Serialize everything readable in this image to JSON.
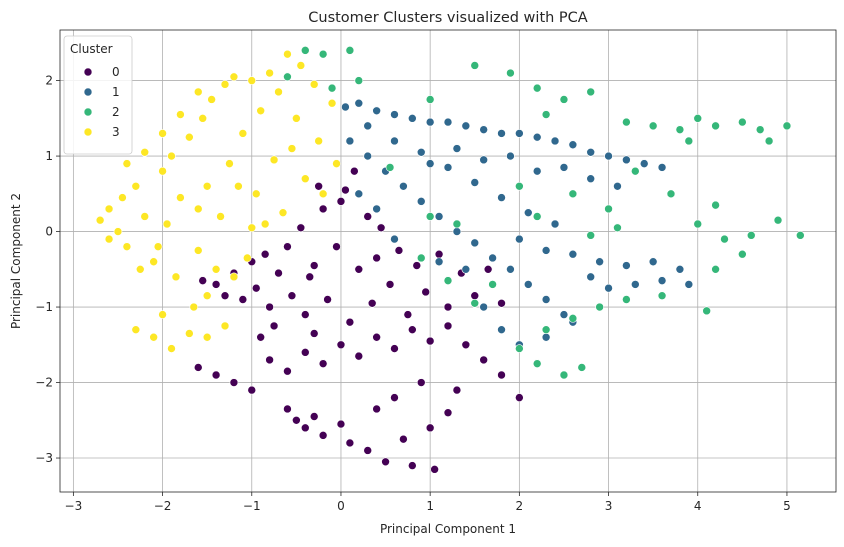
{
  "chart_data": {
    "type": "scatter",
    "title": "Customer Clusters visualized with PCA",
    "xlabel": "Principal Component 1",
    "ylabel": "Principal Component 2",
    "xlim": [
      -3.15,
      5.55
    ],
    "ylim": [
      -3.45,
      2.67
    ],
    "xticks": [
      -3,
      -2,
      -1,
      0,
      1,
      2,
      3,
      4,
      5
    ],
    "yticks": [
      -3,
      -2,
      -1,
      0,
      1,
      2
    ],
    "grid": true,
    "legend": {
      "title": "Cluster",
      "placement": "top-left"
    },
    "series": [
      {
        "name": "0",
        "color": "#440154",
        "points": [
          [
            -1.55,
            -0.65
          ],
          [
            -1.4,
            -0.7
          ],
          [
            -1.3,
            -0.85
          ],
          [
            -1.2,
            -0.55
          ],
          [
            -1.1,
            -0.9
          ],
          [
            -1.0,
            -0.4
          ],
          [
            -0.95,
            -0.75
          ],
          [
            -0.85,
            -0.3
          ],
          [
            -0.8,
            -1.0
          ],
          [
            -0.7,
            -0.55
          ],
          [
            -0.6,
            -0.2
          ],
          [
            -0.55,
            -0.85
          ],
          [
            -0.45,
            0.05
          ],
          [
            -0.4,
            -1.1
          ],
          [
            -0.3,
            -0.45
          ],
          [
            -0.2,
            0.3
          ],
          [
            -0.15,
            -0.9
          ],
          [
            -0.05,
            -0.2
          ],
          [
            0.05,
            0.55
          ],
          [
            0.1,
            -1.2
          ],
          [
            0.2,
            -0.5
          ],
          [
            0.3,
            0.2
          ],
          [
            0.35,
            -0.95
          ],
          [
            0.45,
            0.05
          ],
          [
            0.55,
            -0.7
          ],
          [
            0.65,
            -0.25
          ],
          [
            0.75,
            -1.1
          ],
          [
            0.85,
            -0.45
          ],
          [
            0.95,
            -0.8
          ],
          [
            1.1,
            -0.3
          ],
          [
            1.2,
            -1.0
          ],
          [
            1.35,
            -0.55
          ],
          [
            1.5,
            -0.85
          ],
          [
            1.65,
            -0.5
          ],
          [
            1.8,
            -0.95
          ],
          [
            0.0,
            0.4
          ],
          [
            -0.25,
            0.6
          ],
          [
            0.15,
            0.8
          ],
          [
            -0.35,
            -0.6
          ],
          [
            0.4,
            -0.35
          ],
          [
            -1.6,
            -1.8
          ],
          [
            -1.4,
            -1.9
          ],
          [
            -1.2,
            -2.0
          ],
          [
            -1.0,
            -2.1
          ],
          [
            -0.8,
            -1.7
          ],
          [
            -0.6,
            -1.85
          ],
          [
            -0.4,
            -1.6
          ],
          [
            -0.2,
            -1.75
          ],
          [
            0.0,
            -1.5
          ],
          [
            0.2,
            -1.65
          ],
          [
            0.4,
            -1.4
          ],
          [
            0.6,
            -1.55
          ],
          [
            0.8,
            -1.3
          ],
          [
            1.0,
            -1.45
          ],
          [
            1.2,
            -1.25
          ],
          [
            1.4,
            -1.5
          ],
          [
            1.6,
            -1.7
          ],
          [
            1.8,
            -1.9
          ],
          [
            2.0,
            -2.2
          ],
          [
            -0.6,
            -2.35
          ],
          [
            -0.5,
            -2.5
          ],
          [
            -0.4,
            -2.6
          ],
          [
            -0.3,
            -2.45
          ],
          [
            -0.2,
            -2.7
          ],
          [
            0.0,
            -2.55
          ],
          [
            0.1,
            -2.8
          ],
          [
            0.3,
            -2.9
          ],
          [
            0.5,
            -3.05
          ],
          [
            0.7,
            -2.75
          ],
          [
            0.8,
            -3.1
          ],
          [
            1.0,
            -2.6
          ],
          [
            1.05,
            -3.15
          ],
          [
            1.2,
            -2.4
          ],
          [
            0.4,
            -2.35
          ],
          [
            0.6,
            -2.2
          ],
          [
            -0.9,
            -1.4
          ],
          [
            -0.75,
            -1.25
          ],
          [
            -0.3,
            -1.35
          ],
          [
            0.9,
            -2.0
          ],
          [
            1.3,
            -2.1
          ]
        ]
      },
      {
        "name": "1",
        "color": "#30688e",
        "points": [
          [
            0.05,
            1.65
          ],
          [
            0.2,
            1.7
          ],
          [
            0.4,
            1.6
          ],
          [
            0.6,
            1.55
          ],
          [
            0.8,
            1.5
          ],
          [
            1.0,
            1.45
          ],
          [
            1.2,
            1.45
          ],
          [
            1.4,
            1.4
          ],
          [
            1.6,
            1.35
          ],
          [
            1.8,
            1.3
          ],
          [
            2.0,
            1.3
          ],
          [
            2.2,
            1.25
          ],
          [
            2.4,
            1.2
          ],
          [
            2.6,
            1.15
          ],
          [
            2.8,
            1.05
          ],
          [
            3.0,
            1.0
          ],
          [
            3.2,
            0.95
          ],
          [
            3.4,
            0.9
          ],
          [
            3.6,
            0.85
          ],
          [
            0.1,
            1.2
          ],
          [
            0.3,
            1.0
          ],
          [
            0.5,
            0.8
          ],
          [
            0.7,
            0.6
          ],
          [
            0.9,
            0.4
          ],
          [
            1.1,
            0.2
          ],
          [
            1.3,
            0.0
          ],
          [
            1.5,
            -0.15
          ],
          [
            1.7,
            -0.35
          ],
          [
            1.9,
            -0.5
          ],
          [
            2.1,
            -0.7
          ],
          [
            2.3,
            -0.9
          ],
          [
            2.5,
            -1.1
          ],
          [
            0.3,
            1.4
          ],
          [
            0.6,
            1.2
          ],
          [
            0.9,
            1.05
          ],
          [
            1.2,
            0.85
          ],
          [
            1.5,
            0.65
          ],
          [
            1.8,
            0.45
          ],
          [
            2.1,
            0.25
          ],
          [
            2.4,
            0.1
          ],
          [
            1.0,
            0.9
          ],
          [
            1.3,
            1.1
          ],
          [
            1.6,
            0.95
          ],
          [
            1.9,
            1.0
          ],
          [
            2.2,
            0.8
          ],
          [
            2.5,
            0.85
          ],
          [
            2.8,
            0.7
          ],
          [
            3.1,
            0.6
          ],
          [
            2.0,
            -0.1
          ],
          [
            2.3,
            -0.25
          ],
          [
            2.6,
            -0.3
          ],
          [
            2.9,
            -0.4
          ],
          [
            3.2,
            -0.45
          ],
          [
            3.5,
            -0.4
          ],
          [
            3.8,
            -0.5
          ],
          [
            3.9,
            -0.7
          ],
          [
            2.8,
            -0.6
          ],
          [
            3.0,
            -0.75
          ],
          [
            3.3,
            -0.7
          ],
          [
            3.6,
            -0.65
          ],
          [
            1.4,
            -0.5
          ],
          [
            1.6,
            -1.0
          ],
          [
            1.8,
            -1.3
          ],
          [
            2.0,
            -1.5
          ],
          [
            2.3,
            -1.4
          ],
          [
            2.6,
            -1.2
          ],
          [
            0.4,
            0.3
          ],
          [
            0.2,
            0.5
          ],
          [
            0.6,
            -0.1
          ],
          [
            1.1,
            -0.4
          ]
        ]
      },
      {
        "name": "2",
        "color": "#35b779",
        "points": [
          [
            -0.4,
            2.4
          ],
          [
            -0.2,
            2.35
          ],
          [
            0.1,
            2.4
          ],
          [
            -0.6,
            2.05
          ],
          [
            0.2,
            2.0
          ],
          [
            -0.1,
            1.9
          ],
          [
            1.0,
            1.75
          ],
          [
            1.5,
            2.2
          ],
          [
            1.9,
            2.1
          ],
          [
            2.2,
            1.9
          ],
          [
            2.5,
            1.75
          ],
          [
            2.8,
            1.85
          ],
          [
            2.3,
            1.55
          ],
          [
            3.2,
            1.45
          ],
          [
            3.5,
            1.4
          ],
          [
            3.8,
            1.35
          ],
          [
            4.0,
            1.5
          ],
          [
            4.2,
            1.4
          ],
          [
            4.5,
            1.45
          ],
          [
            4.7,
            1.35
          ],
          [
            5.0,
            1.4
          ],
          [
            4.8,
            1.2
          ],
          [
            3.9,
            1.2
          ],
          [
            3.3,
            0.8
          ],
          [
            3.7,
            0.5
          ],
          [
            3.0,
            0.3
          ],
          [
            2.6,
            0.5
          ],
          [
            2.2,
            0.2
          ],
          [
            2.8,
            -0.05
          ],
          [
            3.1,
            0.05
          ],
          [
            4.2,
            0.35
          ],
          [
            4.0,
            0.1
          ],
          [
            4.3,
            -0.1
          ],
          [
            4.6,
            -0.05
          ],
          [
            4.9,
            0.15
          ],
          [
            5.15,
            -0.05
          ],
          [
            4.5,
            -0.3
          ],
          [
            4.2,
            -0.5
          ],
          [
            4.1,
            -1.05
          ],
          [
            3.6,
            -0.85
          ],
          [
            3.2,
            -0.9
          ],
          [
            2.9,
            -1.0
          ],
          [
            2.6,
            -1.15
          ],
          [
            2.3,
            -1.3
          ],
          [
            2.0,
            -1.55
          ],
          [
            2.2,
            -1.75
          ],
          [
            2.5,
            -1.9
          ],
          [
            2.7,
            -1.8
          ],
          [
            1.5,
            -0.95
          ],
          [
            1.7,
            -0.7
          ],
          [
            1.3,
            0.1
          ],
          [
            1.0,
            0.2
          ],
          [
            0.9,
            -0.35
          ],
          [
            1.2,
            -0.65
          ],
          [
            0.55,
            0.85
          ],
          [
            2.0,
            0.6
          ]
        ]
      },
      {
        "name": "3",
        "color": "#fde725",
        "points": [
          [
            -2.7,
            0.15
          ],
          [
            -2.6,
            0.3
          ],
          [
            -2.5,
            0.0
          ],
          [
            -2.45,
            0.45
          ],
          [
            -2.4,
            -0.2
          ],
          [
            -2.3,
            0.6
          ],
          [
            -2.2,
            0.2
          ],
          [
            -2.1,
            -0.4
          ],
          [
            -2.0,
            0.8
          ],
          [
            -1.95,
            0.1
          ],
          [
            -1.9,
            1.0
          ],
          [
            -1.85,
            -0.6
          ],
          [
            -1.8,
            0.45
          ],
          [
            -1.7,
            1.25
          ],
          [
            -1.6,
            -0.25
          ],
          [
            -1.55,
            1.5
          ],
          [
            -1.5,
            0.6
          ],
          [
            -1.45,
            1.75
          ],
          [
            -1.4,
            -0.5
          ],
          [
            -1.35,
            0.2
          ],
          [
            -1.3,
            1.95
          ],
          [
            -1.25,
            0.9
          ],
          [
            -1.2,
            2.05
          ],
          [
            -1.1,
            1.3
          ],
          [
            -1.05,
            -0.35
          ],
          [
            -1.0,
            2.0
          ],
          [
            -0.95,
            0.5
          ],
          [
            -0.9,
            1.6
          ],
          [
            -0.8,
            2.1
          ],
          [
            -0.75,
            0.95
          ],
          [
            -0.7,
            1.85
          ],
          [
            -0.65,
            0.25
          ],
          [
            -0.6,
            2.35
          ],
          [
            -0.5,
            1.5
          ],
          [
            -0.45,
            2.2
          ],
          [
            -0.4,
            0.7
          ],
          [
            -0.3,
            1.95
          ],
          [
            -0.25,
            1.2
          ],
          [
            -0.2,
            0.5
          ],
          [
            -0.1,
            1.7
          ],
          [
            -0.05,
            0.9
          ],
          [
            -2.2,
            1.05
          ],
          [
            -2.0,
            1.3
          ],
          [
            -1.8,
            1.55
          ],
          [
            -1.6,
            1.85
          ],
          [
            -1.0,
            0.05
          ],
          [
            -1.2,
            -0.6
          ],
          [
            -1.5,
            -0.85
          ],
          [
            -1.3,
            -1.25
          ],
          [
            -1.5,
            -1.4
          ],
          [
            -1.7,
            -1.35
          ],
          [
            -1.9,
            -1.55
          ],
          [
            -2.1,
            -1.4
          ],
          [
            -2.3,
            -1.3
          ],
          [
            -2.0,
            -1.1
          ],
          [
            -1.65,
            -1.0
          ],
          [
            -2.6,
            -0.1
          ],
          [
            -2.4,
            0.9
          ],
          [
            -1.15,
            0.6
          ],
          [
            -0.85,
            0.1
          ],
          [
            -1.6,
            0.3
          ],
          [
            -2.05,
            -0.2
          ],
          [
            -2.25,
            -0.5
          ],
          [
            -0.55,
            1.1
          ]
        ]
      }
    ]
  }
}
